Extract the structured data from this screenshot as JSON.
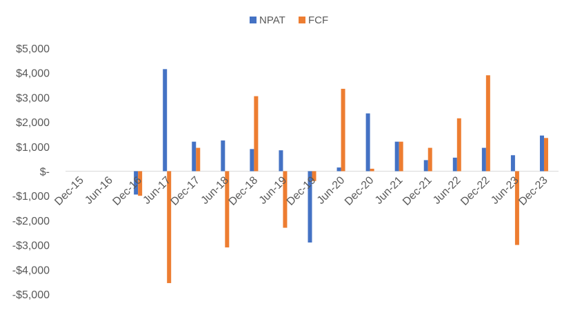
{
  "chart_data": {
    "type": "bar",
    "title": "",
    "xlabel": "",
    "ylabel": "",
    "categories": [
      "Dec-15",
      "Jun-16",
      "Dec-16",
      "Jun-17",
      "Dec-17",
      "Jun-18",
      "Dec-18",
      "Jun-19",
      "Dec-19",
      "Jun-20",
      "Dec-20",
      "Jun-21",
      "Dec-21",
      "Jun-22",
      "Dec-22",
      "Jun-23",
      "Dec-23"
    ],
    "series": [
      {
        "name": "NPAT",
        "color": "#4472C4",
        "values": [
          0,
          0,
          -950,
          4150,
          1200,
          1250,
          900,
          850,
          -2900,
          150,
          2350,
          1200,
          450,
          550,
          950,
          650,
          1450
        ]
      },
      {
        "name": "FCF",
        "color": "#ED7D31",
        "values": [
          0,
          0,
          -1000,
          -4550,
          950,
          -3100,
          3050,
          -2300,
          -400,
          3350,
          100,
          1200,
          950,
          2150,
          3900,
          -3000,
          1350
        ]
      }
    ],
    "ylim": [
      -5000,
      5000
    ],
    "y_ticks": [
      5000,
      4000,
      3000,
      2000,
      1000,
      0,
      -1000,
      -2000,
      -3000,
      -4000,
      -5000
    ],
    "y_tick_labels": [
      "$5,000",
      "$4,000",
      "$3,000",
      "$2,000",
      "$1,000",
      "$-",
      "-$1,000",
      "-$2,000",
      "-$3,000",
      "-$4,000",
      "-$5,000"
    ],
    "legend_position": "top-center",
    "grid": false
  }
}
